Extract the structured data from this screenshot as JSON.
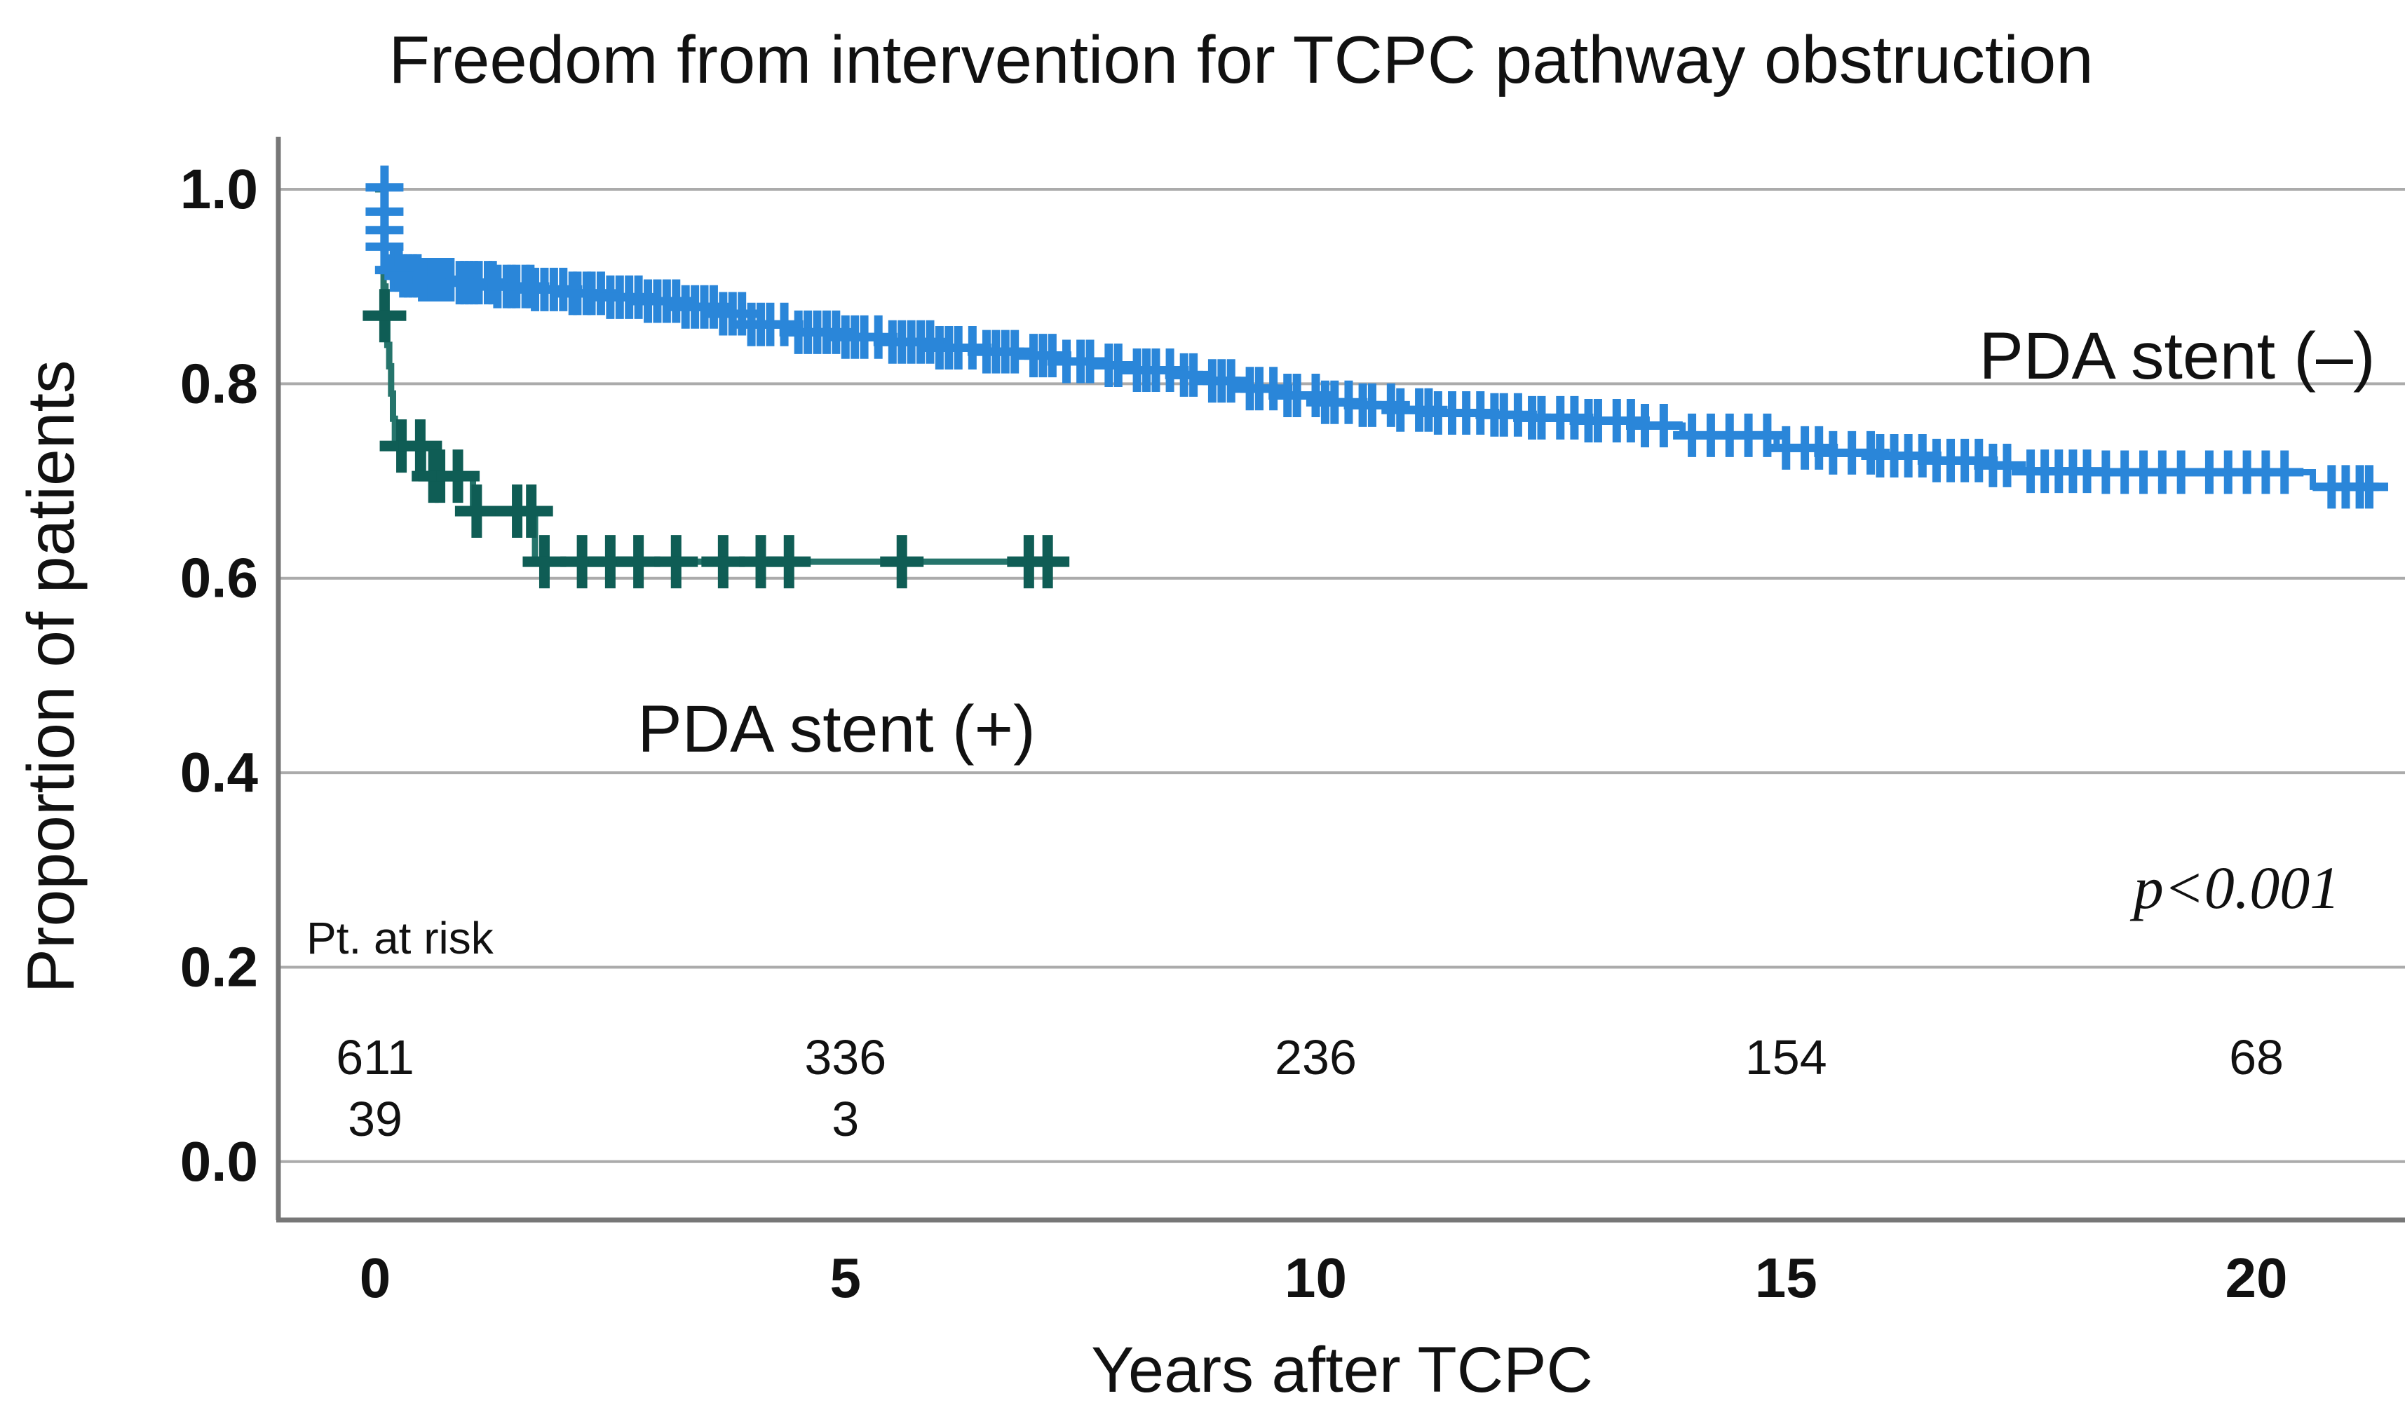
{
  "title": "Freedom from intervention for TCPC pathway obstruction",
  "colors": {
    "pda_stent_minus_curve": "#2a86d9",
    "pda_stent_plus_curve": "#25746b",
    "pda_stent_plus_censor": "#0f5d55",
    "gridline": "#ababab",
    "axis_line": "#777777",
    "text": "#111111"
  },
  "chart_data": {
    "type": "line",
    "subtype": "kaplan-meier-step",
    "title": "Freedom from intervention for TCPC pathway obstruction",
    "xlabel": "Years after TCPC",
    "ylabel": "Proportion of patients",
    "xlim": [
      0,
      21.6
    ],
    "ylim": [
      0.0,
      1.05
    ],
    "grid": true,
    "xticks": [
      {
        "label": "0",
        "value": 0
      },
      {
        "label": "5",
        "value": 5
      },
      {
        "label": "10",
        "value": 10
      },
      {
        "label": "15",
        "value": 15
      },
      {
        "label": "20",
        "value": 20
      }
    ],
    "yticks": [
      {
        "label": "1.0",
        "value": 1.0
      },
      {
        "label": "0.8",
        "value": 0.8
      },
      {
        "label": "0.6",
        "value": 0.6
      },
      {
        "label": "0.4",
        "value": 0.4
      },
      {
        "label": "0.2",
        "value": 0.2
      },
      {
        "label": "0.0",
        "value": 0.0
      }
    ],
    "annotations": {
      "p_value": "p<0.001"
    },
    "series": [
      {
        "name": "PDA stent (–)",
        "color": "#2a86d9",
        "censor_color": "#2a86d9",
        "steps": [
          [
            0,
            1.0
          ],
          [
            0.09,
            1.0
          ],
          [
            0.09,
            0.93
          ],
          [
            0.14,
            0.924
          ],
          [
            0.2,
            0.917
          ],
          [
            0.3,
            0.911
          ],
          [
            0.5,
            0.907
          ],
          [
            0.9,
            0.904
          ],
          [
            1.3,
            0.9
          ],
          [
            1.7,
            0.897
          ],
          [
            2.1,
            0.893
          ],
          [
            2.5,
            0.889
          ],
          [
            2.9,
            0.885
          ],
          [
            3.3,
            0.879
          ],
          [
            3.7,
            0.872
          ],
          [
            4.0,
            0.861
          ],
          [
            4.4,
            0.853
          ],
          [
            5.0,
            0.848
          ],
          [
            5.5,
            0.843
          ],
          [
            6.0,
            0.837
          ],
          [
            6.4,
            0.833
          ],
          [
            6.9,
            0.829
          ],
          [
            7.3,
            0.823
          ],
          [
            7.7,
            0.819
          ],
          [
            8.1,
            0.814
          ],
          [
            8.5,
            0.809
          ],
          [
            8.9,
            0.803
          ],
          [
            9.3,
            0.795
          ],
          [
            9.7,
            0.788
          ],
          [
            10.1,
            0.781
          ],
          [
            10.5,
            0.778
          ],
          [
            10.9,
            0.773
          ],
          [
            11.3,
            0.77
          ],
          [
            11.8,
            0.768
          ],
          [
            12.3,
            0.765
          ],
          [
            12.9,
            0.762
          ],
          [
            13.4,
            0.757
          ],
          [
            13.9,
            0.747
          ],
          [
            14.9,
            0.734
          ],
          [
            15.5,
            0.729
          ],
          [
            16.0,
            0.726
          ],
          [
            16.6,
            0.721
          ],
          [
            17.1,
            0.716
          ],
          [
            17.5,
            0.71
          ],
          [
            18.3,
            0.709
          ],
          [
            20.6,
            0.708
          ],
          [
            20.6,
            0.694
          ],
          [
            21.3,
            0.694
          ]
        ],
        "drop_censors": [
          [
            0.1,
            1.002
          ],
          [
            0.1,
            0.977
          ],
          [
            0.1,
            0.958
          ],
          [
            0.1,
            0.941
          ]
        ],
        "censor_times": [
          0.2,
          0.25,
          0.3,
          0.35,
          0.4,
          0.45,
          0.5,
          0.55,
          0.6,
          0.65,
          0.7,
          0.75,
          0.8,
          0.9,
          0.95,
          1.0,
          1.05,
          1.1,
          1.2,
          1.25,
          1.3,
          1.4,
          1.45,
          1.5,
          1.6,
          1.65,
          1.7,
          1.8,
          1.9,
          2.0,
          2.1,
          2.15,
          2.25,
          2.3,
          2.4,
          2.5,
          2.6,
          2.7,
          2.8,
          2.9,
          3.0,
          3.1,
          3.2,
          3.3,
          3.4,
          3.5,
          3.6,
          3.7,
          3.8,
          3.9,
          4.0,
          4.1,
          4.2,
          4.35,
          4.5,
          4.6,
          4.7,
          4.8,
          4.9,
          5.0,
          5.1,
          5.2,
          5.35,
          5.5,
          5.6,
          5.7,
          5.8,
          5.9,
          6.0,
          6.1,
          6.2,
          6.35,
          6.5,
          6.6,
          6.7,
          6.8,
          7.0,
          7.1,
          7.2,
          7.35,
          7.5,
          7.6,
          7.8,
          7.9,
          8.1,
          8.2,
          8.3,
          8.45,
          8.6,
          8.7,
          8.9,
          9.0,
          9.1,
          9.3,
          9.4,
          9.55,
          9.7,
          9.8,
          10.0,
          10.1,
          10.2,
          10.35,
          10.5,
          10.6,
          10.8,
          10.9,
          11.1,
          11.2,
          11.3,
          11.45,
          11.6,
          11.75,
          11.9,
          12.0,
          12.15,
          12.3,
          12.4,
          12.6,
          12.75,
          12.9,
          13.0,
          13.2,
          13.35,
          13.5,
          13.7,
          14.0,
          14.2,
          14.4,
          14.6,
          14.8,
          15.0,
          15.2,
          15.35,
          15.5,
          15.7,
          15.9,
          16.0,
          16.15,
          16.3,
          16.45,
          16.6,
          16.75,
          16.9,
          17.05,
          17.2,
          17.35,
          17.6,
          17.75,
          17.9,
          18.05,
          18.2,
          18.4,
          18.6,
          18.8,
          19.0,
          19.2,
          19.5,
          19.7,
          19.9,
          20.1,
          20.3,
          20.8,
          20.95,
          21.1,
          21.2
        ]
      },
      {
        "name": "PDA stent (+)",
        "color": "#25746b",
        "censor_color": "#0f5d55",
        "steps": [
          [
            0,
            1.0
          ],
          [
            0.09,
            1.0
          ],
          [
            0.09,
            0.9
          ],
          [
            0.11,
            0.87
          ],
          [
            0.13,
            0.84
          ],
          [
            0.15,
            0.818
          ],
          [
            0.17,
            0.79
          ],
          [
            0.19,
            0.764
          ],
          [
            0.21,
            0.736
          ],
          [
            0.51,
            0.736
          ],
          [
            0.51,
            0.705
          ],
          [
            1.04,
            0.705
          ],
          [
            1.04,
            0.669
          ],
          [
            1.7,
            0.669
          ],
          [
            1.7,
            0.617
          ],
          [
            7.25,
            0.617
          ]
        ],
        "drop_censors": [
          [
            0.1,
            0.87
          ]
        ],
        "censor_times": [
          0.28,
          0.48,
          0.62,
          0.69,
          0.88,
          1.08,
          1.51,
          1.66,
          1.8,
          2.2,
          2.5,
          2.8,
          3.2,
          3.7,
          4.1,
          4.4,
          5.6,
          6.95,
          7.15
        ]
      }
    ],
    "risk_table": {
      "header": "Pt. at risk",
      "times": [
        0,
        5,
        10,
        15,
        20
      ],
      "rows": [
        {
          "series": "PDA stent (–)",
          "counts": [
            "611",
            "336",
            "236",
            "154",
            "68"
          ]
        },
        {
          "series": "PDA stent (+)",
          "counts": [
            "39",
            "3",
            "",
            "",
            ""
          ]
        }
      ]
    }
  }
}
